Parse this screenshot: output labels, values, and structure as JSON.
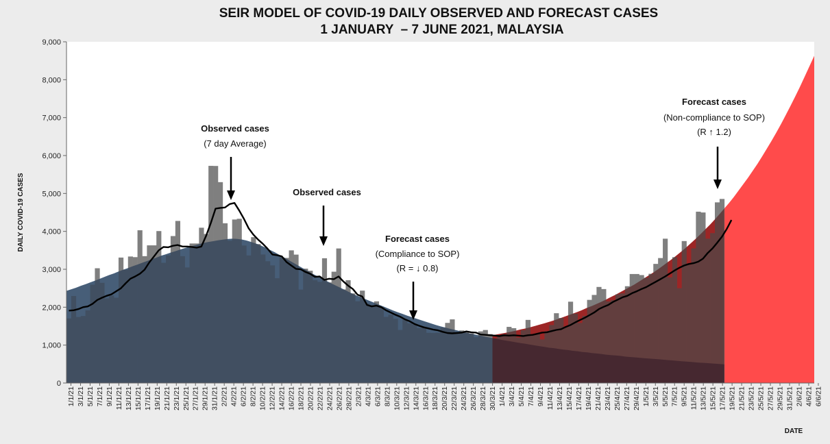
{
  "chart_data": {
    "type": "bar",
    "title": "SEIR MODEL OF COVID-19 DAILY OBSERVED AND FORECAST CASES",
    "subtitle": "1 JANUARY  – 7 JUNE 2021, MALAYSIA",
    "xlabel": "DATE",
    "ylabel": "DAILY COVID-19 CASES",
    "ylim": [
      0,
      9000
    ],
    "yticks": [
      "0",
      "1,000",
      "2,000",
      "3,000",
      "4,000",
      "5,000",
      "6,000",
      "7,000",
      "8,000",
      "9,000"
    ],
    "xticks": [
      "1/1/21",
      "3/1/21",
      "5/1/21",
      "7/1/21",
      "9/1/21",
      "11/1/21",
      "13/1/21",
      "15/1/21",
      "17/1/21",
      "19/1/21",
      "21/1/21",
      "23/1/21",
      "25/1/21",
      "27/1/21",
      "29/1/21",
      "31/1/21",
      "2/2/21",
      "4/2/21",
      "6/2/21",
      "8/2/21",
      "10/2/21",
      "12/2/21",
      "14/2/21",
      "16/2/21",
      "18/2/21",
      "20/2/21",
      "22/2/21",
      "24/2/21",
      "26/2/21",
      "28/2/21",
      "2/3/21",
      "4/3/21",
      "6/3/21",
      "8/3/21",
      "10/3/21",
      "12/3/21",
      "14/3/21",
      "16/3/21",
      "18/3/21",
      "20/3/21",
      "22/3/21",
      "24/3/21",
      "26/3/21",
      "28/3/21",
      "30/3/21",
      "1/4/21",
      "3/4/21",
      "5/4/21",
      "7/4/21",
      "9/4/21",
      "11/4/21",
      "13/4/21",
      "15/4/21",
      "17/4/21",
      "19/4/21",
      "21/4/21",
      "23/4/21",
      "25/4/21",
      "27/4/21",
      "29/4/21",
      "1/5/21",
      "3/5/21",
      "5/5/21",
      "7/5/21",
      "9/5/21",
      "11/5/21",
      "13/5/21",
      "15/5/21",
      "17/5/21",
      "19/5/21",
      "21/5/21",
      "23/5/21",
      "25/5/21",
      "27/5/21",
      "29/5/21",
      "31/5/21",
      "2/6/21",
      "4/6/21",
      "6/6/21"
    ],
    "observed_daily": [
      1704,
      2295,
      1741,
      1767,
      1917,
      2593,
      3027,
      2643,
      2232,
      2309,
      2251,
      3309,
      2985,
      3337,
      3320,
      4029,
      3346,
      3631,
      3631,
      4008,
      3170,
      3367,
      3876,
      4275,
      3346,
      3048,
      3680,
      3680,
      4096,
      3931,
      5728,
      5725,
      5298,
      4214,
      3751,
      4313,
      4332,
      3627,
      3365,
      3847,
      3665,
      3390,
      3212,
      3103,
      2764,
      3309,
      3300,
      3499,
      3387,
      2464,
      3016,
      2962,
      2712,
      2668,
      3291,
      2653,
      2936,
      3549,
      2468,
      2712,
      2364,
      2156,
      2437,
      2095,
      2055,
      2154,
      2000,
      1745,
      1800,
      1694,
      1400,
      1680,
      1574,
      1540,
      1449,
      1470,
      1324,
      1320,
      1326,
      1460,
      1586,
      1679,
      1305,
      1386,
      1346,
      1309,
      1208,
      1362,
      1398,
      1290,
      1174,
      1250,
      1291,
      1481,
      1447,
      1200,
      1393,
      1665,
      1289,
      1291,
      1149,
      1366,
      1528,
      1841,
      1716,
      1467,
      2145,
      1829,
      1585,
      1770,
      2193,
      2323,
      2534,
      2478,
      2152,
      2187,
      2340,
      2363,
      2553,
      2875,
      2875,
      2847,
      2776,
      2881,
      3142,
      3296,
      3807,
      2786,
      3319,
      2500,
      3744,
      3120,
      3551,
      4519,
      4498,
      3807,
      3953,
      4765,
      4855
    ],
    "observed_7day_avg": [
      1910,
      1920,
      1950,
      2000,
      2020,
      2090,
      2190,
      2250,
      2300,
      2340,
      2420,
      2500,
      2630,
      2750,
      2810,
      2880,
      2990,
      3180,
      3340,
      3500,
      3590,
      3580,
      3620,
      3640,
      3600,
      3600,
      3590,
      3570,
      3600,
      3880,
      4220,
      4600,
      4620,
      4630,
      4720,
      4750,
      4550,
      4330,
      4080,
      3910,
      3780,
      3670,
      3540,
      3390,
      3370,
      3340,
      3190,
      3100,
      3010,
      3000,
      2930,
      2880,
      2800,
      2810,
      2720,
      2750,
      2740,
      2810,
      2680,
      2570,
      2480,
      2330,
      2280,
      2060,
      2020,
      2040,
      2000,
      1920,
      1860,
      1800,
      1750,
      1680,
      1630,
      1560,
      1510,
      1470,
      1440,
      1410,
      1390,
      1350,
      1320,
      1310,
      1320,
      1330,
      1360,
      1340,
      1330,
      1280,
      1270,
      1260,
      1250,
      1240,
      1260,
      1250,
      1260,
      1250,
      1240,
      1260,
      1270,
      1300,
      1330,
      1340,
      1370,
      1400,
      1420,
      1480,
      1530,
      1600,
      1660,
      1720,
      1790,
      1860,
      1950,
      2010,
      2060,
      2140,
      2200,
      2260,
      2300,
      2370,
      2420,
      2480,
      2530,
      2600,
      2670,
      2740,
      2810,
      2890,
      2970,
      3040,
      3100,
      3140,
      3160,
      3200,
      3280,
      3430,
      3550,
      3700,
      3860,
      4060,
      4300
    ],
    "forecast_compliance_R": "0.8",
    "forecast_noncompliance_R": "1.2",
    "forecast_compliance_series": [
      2430,
      2470,
      2510,
      2560,
      2600,
      2650,
      2690,
      2740,
      2790,
      2840,
      2880,
      2930,
      2980,
      3020,
      3070,
      3110,
      3160,
      3200,
      3250,
      3290,
      3340,
      3380,
      3420,
      3460,
      3500,
      3540,
      3580,
      3610,
      3640,
      3680,
      3710,
      3730,
      3750,
      3770,
      3790,
      3800,
      3810,
      3800,
      3780,
      3750,
      3710,
      3670,
      3620,
      3560,
      3500,
      3440,
      3370,
      3300,
      3230,
      3160,
      3090,
      3020,
      2950,
      2880,
      2820,
      2750,
      2690,
      2630,
      2570,
      2510,
      2450,
      2390,
      2330,
      2280,
      2230,
      2180,
      2130,
      2080,
      2030,
      1980,
      1930,
      1880,
      1840,
      1790,
      1750,
      1710,
      1670,
      1630,
      1590,
      1550,
      1510,
      1480,
      1450,
      1420,
      1390,
      1360,
      1330,
      1300,
      1280,
      1250,
      1230,
      1200,
      1180,
      1160,
      1130,
      1110,
      1090,
      1070,
      1050,
      1030,
      1010,
      990,
      970,
      950,
      930,
      920,
      900,
      880,
      870,
      850,
      840,
      820,
      810,
      790,
      780,
      770,
      750,
      740,
      730,
      720,
      700,
      690,
      680,
      670,
      660,
      650,
      640,
      630,
      620,
      610,
      600,
      590,
      580,
      570,
      560,
      550,
      540,
      530,
      525,
      515,
      505,
      500,
      490,
      485,
      475,
      470,
      465,
      455,
      450,
      445,
      440,
      430,
      425,
      420,
      415,
      410,
      400,
      395,
      390,
      385,
      380,
      375
    ],
    "forecast_noncompliance_series": [
      1260,
      1280,
      1300,
      1320,
      1340,
      1370,
      1390,
      1420,
      1440,
      1470,
      1500,
      1530,
      1560,
      1590,
      1630,
      1660,
      1700,
      1740,
      1780,
      1820,
      1860,
      1900,
      1950,
      2000,
      2040,
      2090,
      2140,
      2190,
      2250,
      2300,
      2360,
      2420,
      2480,
      2540,
      2600,
      2670,
      2740,
      2810,
      2880,
      2950,
      3030,
      3110,
      3190,
      3270,
      3360,
      3450,
      3540,
      3640,
      3740,
      3840,
      3950,
      4060,
      4170,
      4290,
      4410,
      4540,
      4670,
      4800,
      4940,
      5090,
      5240,
      5390,
      5550,
      5710,
      5880,
      6060,
      6240,
      6430,
      6620,
      6820,
      7030,
      7240,
      7460,
      7680,
      7910,
      8150,
      8390,
      8630
    ]
  },
  "annotations": {
    "observed_avg_label": "Observed cases",
    "observed_avg_sub": "(7 day Average)",
    "observed_label": "Observed cases",
    "forecast_sop_label": "Forecast cases",
    "forecast_sop_sub": "(Compliance to SOP)",
    "forecast_sop_r": "(R = ↓ 0.8)",
    "forecast_nonsop_label": "Forecast cases",
    "forecast_nonsop_sub": "(Non-compliance to SOP)",
    "forecast_nonsop_r": "(R ↑ 1.2)"
  },
  "colors": {
    "background": "#ececec",
    "plot_bg": "#ffffff",
    "observed_bar": "#7f7f7f",
    "compliance_fill": "#9dc3e6",
    "noncompliance_fill": "#ff4b4b",
    "avg_line": "#000000"
  }
}
